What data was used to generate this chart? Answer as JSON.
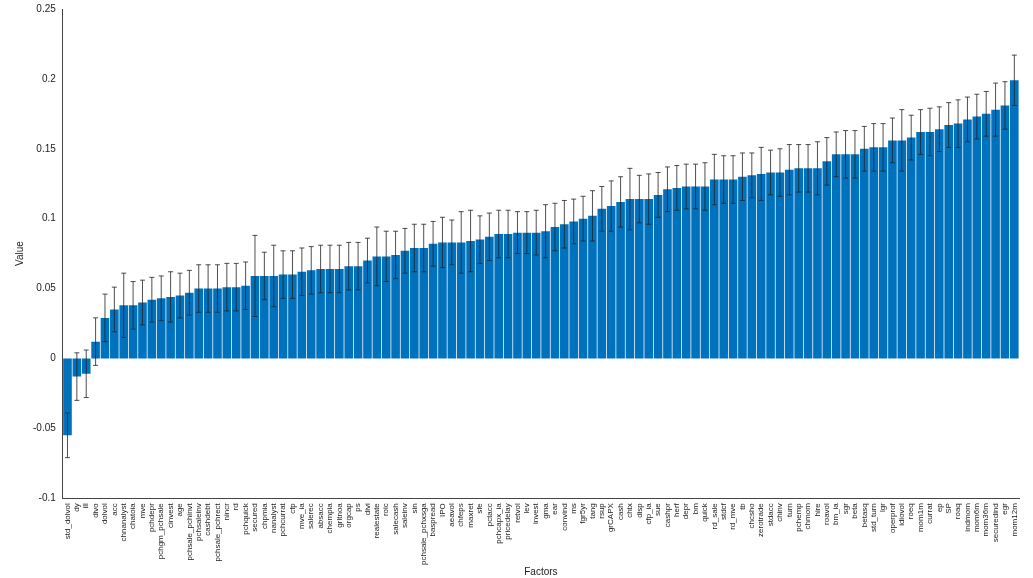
{
  "chart_data": {
    "type": "bar",
    "xlabel": "Factors",
    "ylabel": "Value",
    "color": "#0072bd",
    "ylim": [
      -0.1,
      0.25
    ],
    "yticks": [
      -0.1,
      -0.05,
      0,
      0.05,
      0.1,
      0.15,
      0.2,
      0.25
    ],
    "grid": false,
    "legend": false,
    "categories": [
      "std_dolvol",
      "dy",
      "ill",
      "divo",
      "dolvol",
      "acc",
      "chnanalyst",
      "chatoia",
      "mve",
      "pchdepr",
      "pchgm_pchsale",
      "cinvest",
      "age",
      "pchsale_pchinvt",
      "pchsaleinv",
      "cashdebt",
      "pchsale_pchrect",
      "nincr",
      "rd",
      "pchquick",
      "secured",
      "chpmia",
      "nanalyst",
      "pchcurrat",
      "cfp",
      "mve_ia",
      "salerec",
      "absacc",
      "chempia",
      "grltnoa",
      "orgcap",
      "ps",
      "divi",
      "realestate",
      "roic",
      "salecash",
      "saleinv",
      "sin",
      "pchsale_pchxsga",
      "baspread",
      "IPO",
      "aeavol",
      "chfeps",
      "maxret",
      "sfe",
      "pctacc",
      "pchcapx_ia",
      "pricedelay",
      "retvol",
      "lev",
      "invest",
      "gma",
      "ear",
      "convind",
      "ms",
      "fgr5yr",
      "tang",
      "rsup",
      "grCAPX",
      "cash",
      "chtx",
      "disp",
      "cfp_ia",
      "sue",
      "cashpr",
      "herf",
      "depr",
      "bm",
      "quick",
      "rd_sale",
      "stdcf",
      "rd_mve",
      "tb",
      "chcsho",
      "zerotrade",
      "stdacc",
      "chinv",
      "turn",
      "pchemp",
      "chmom",
      "hire",
      "roavol",
      "bm_ia",
      "sgr",
      "beta",
      "betasq",
      "std_turn",
      "lgr",
      "operprof",
      "idiovol",
      "roeq",
      "mom1m",
      "currat",
      "ep",
      "SP",
      "roaq",
      "indmom",
      "mom6m",
      "mom36m",
      "securedind",
      "egr",
      "mom12m"
    ],
    "values": [
      -0.055,
      -0.013,
      -0.011,
      0.012,
      0.029,
      0.035,
      0.038,
      0.038,
      0.04,
      0.042,
      0.043,
      0.044,
      0.045,
      0.047,
      0.05,
      0.05,
      0.05,
      0.051,
      0.051,
      0.052,
      0.059,
      0.059,
      0.059,
      0.06,
      0.06,
      0.062,
      0.063,
      0.064,
      0.064,
      0.064,
      0.066,
      0.066,
      0.07,
      0.073,
      0.073,
      0.074,
      0.077,
      0.079,
      0.079,
      0.082,
      0.083,
      0.083,
      0.083,
      0.084,
      0.085,
      0.087,
      0.089,
      0.089,
      0.09,
      0.09,
      0.09,
      0.091,
      0.094,
      0.096,
      0.098,
      0.1,
      0.102,
      0.107,
      0.109,
      0.112,
      0.114,
      0.114,
      0.114,
      0.117,
      0.121,
      0.122,
      0.123,
      0.123,
      0.123,
      0.128,
      0.128,
      0.128,
      0.13,
      0.131,
      0.132,
      0.133,
      0.133,
      0.135,
      0.136,
      0.136,
      0.136,
      0.141,
      0.146,
      0.146,
      0.146,
      0.15,
      0.151,
      0.151,
      0.156,
      0.156,
      0.158,
      0.162,
      0.162,
      0.164,
      0.167,
      0.168,
      0.171,
      0.173,
      0.175,
      0.178,
      0.181,
      0.199
    ],
    "errors": [
      0.016,
      0.017,
      0.017,
      0.017,
      0.017,
      0.016,
      0.023,
      0.017,
      0.016,
      0.016,
      0.016,
      0.018,
      0.016,
      0.016,
      0.017,
      0.017,
      0.017,
      0.017,
      0.017,
      0.017,
      0.029,
      0.017,
      0.022,
      0.017,
      0.017,
      0.017,
      0.017,
      0.017,
      0.017,
      0.017,
      0.017,
      0.017,
      0.016,
      0.021,
      0.018,
      0.017,
      0.016,
      0.017,
      0.017,
      0.016,
      0.018,
      0.016,
      0.022,
      0.022,
      0.017,
      0.017,
      0.017,
      0.017,
      0.015,
      0.015,
      0.016,
      0.019,
      0.017,
      0.017,
      0.016,
      0.016,
      0.018,
      0.016,
      0.018,
      0.018,
      0.022,
      0.017,
      0.018,
      0.016,
      0.016,
      0.016,
      0.016,
      0.016,
      0.017,
      0.018,
      0.017,
      0.017,
      0.017,
      0.016,
      0.019,
      0.016,
      0.017,
      0.018,
      0.017,
      0.017,
      0.019,
      0.017,
      0.016,
      0.017,
      0.017,
      0.016,
      0.017,
      0.017,
      0.016,
      0.022,
      0.016,
      0.016,
      0.017,
      0.016,
      0.016,
      0.017,
      0.016,
      0.016,
      0.016,
      0.019,
      0.017,
      0.018
    ]
  }
}
